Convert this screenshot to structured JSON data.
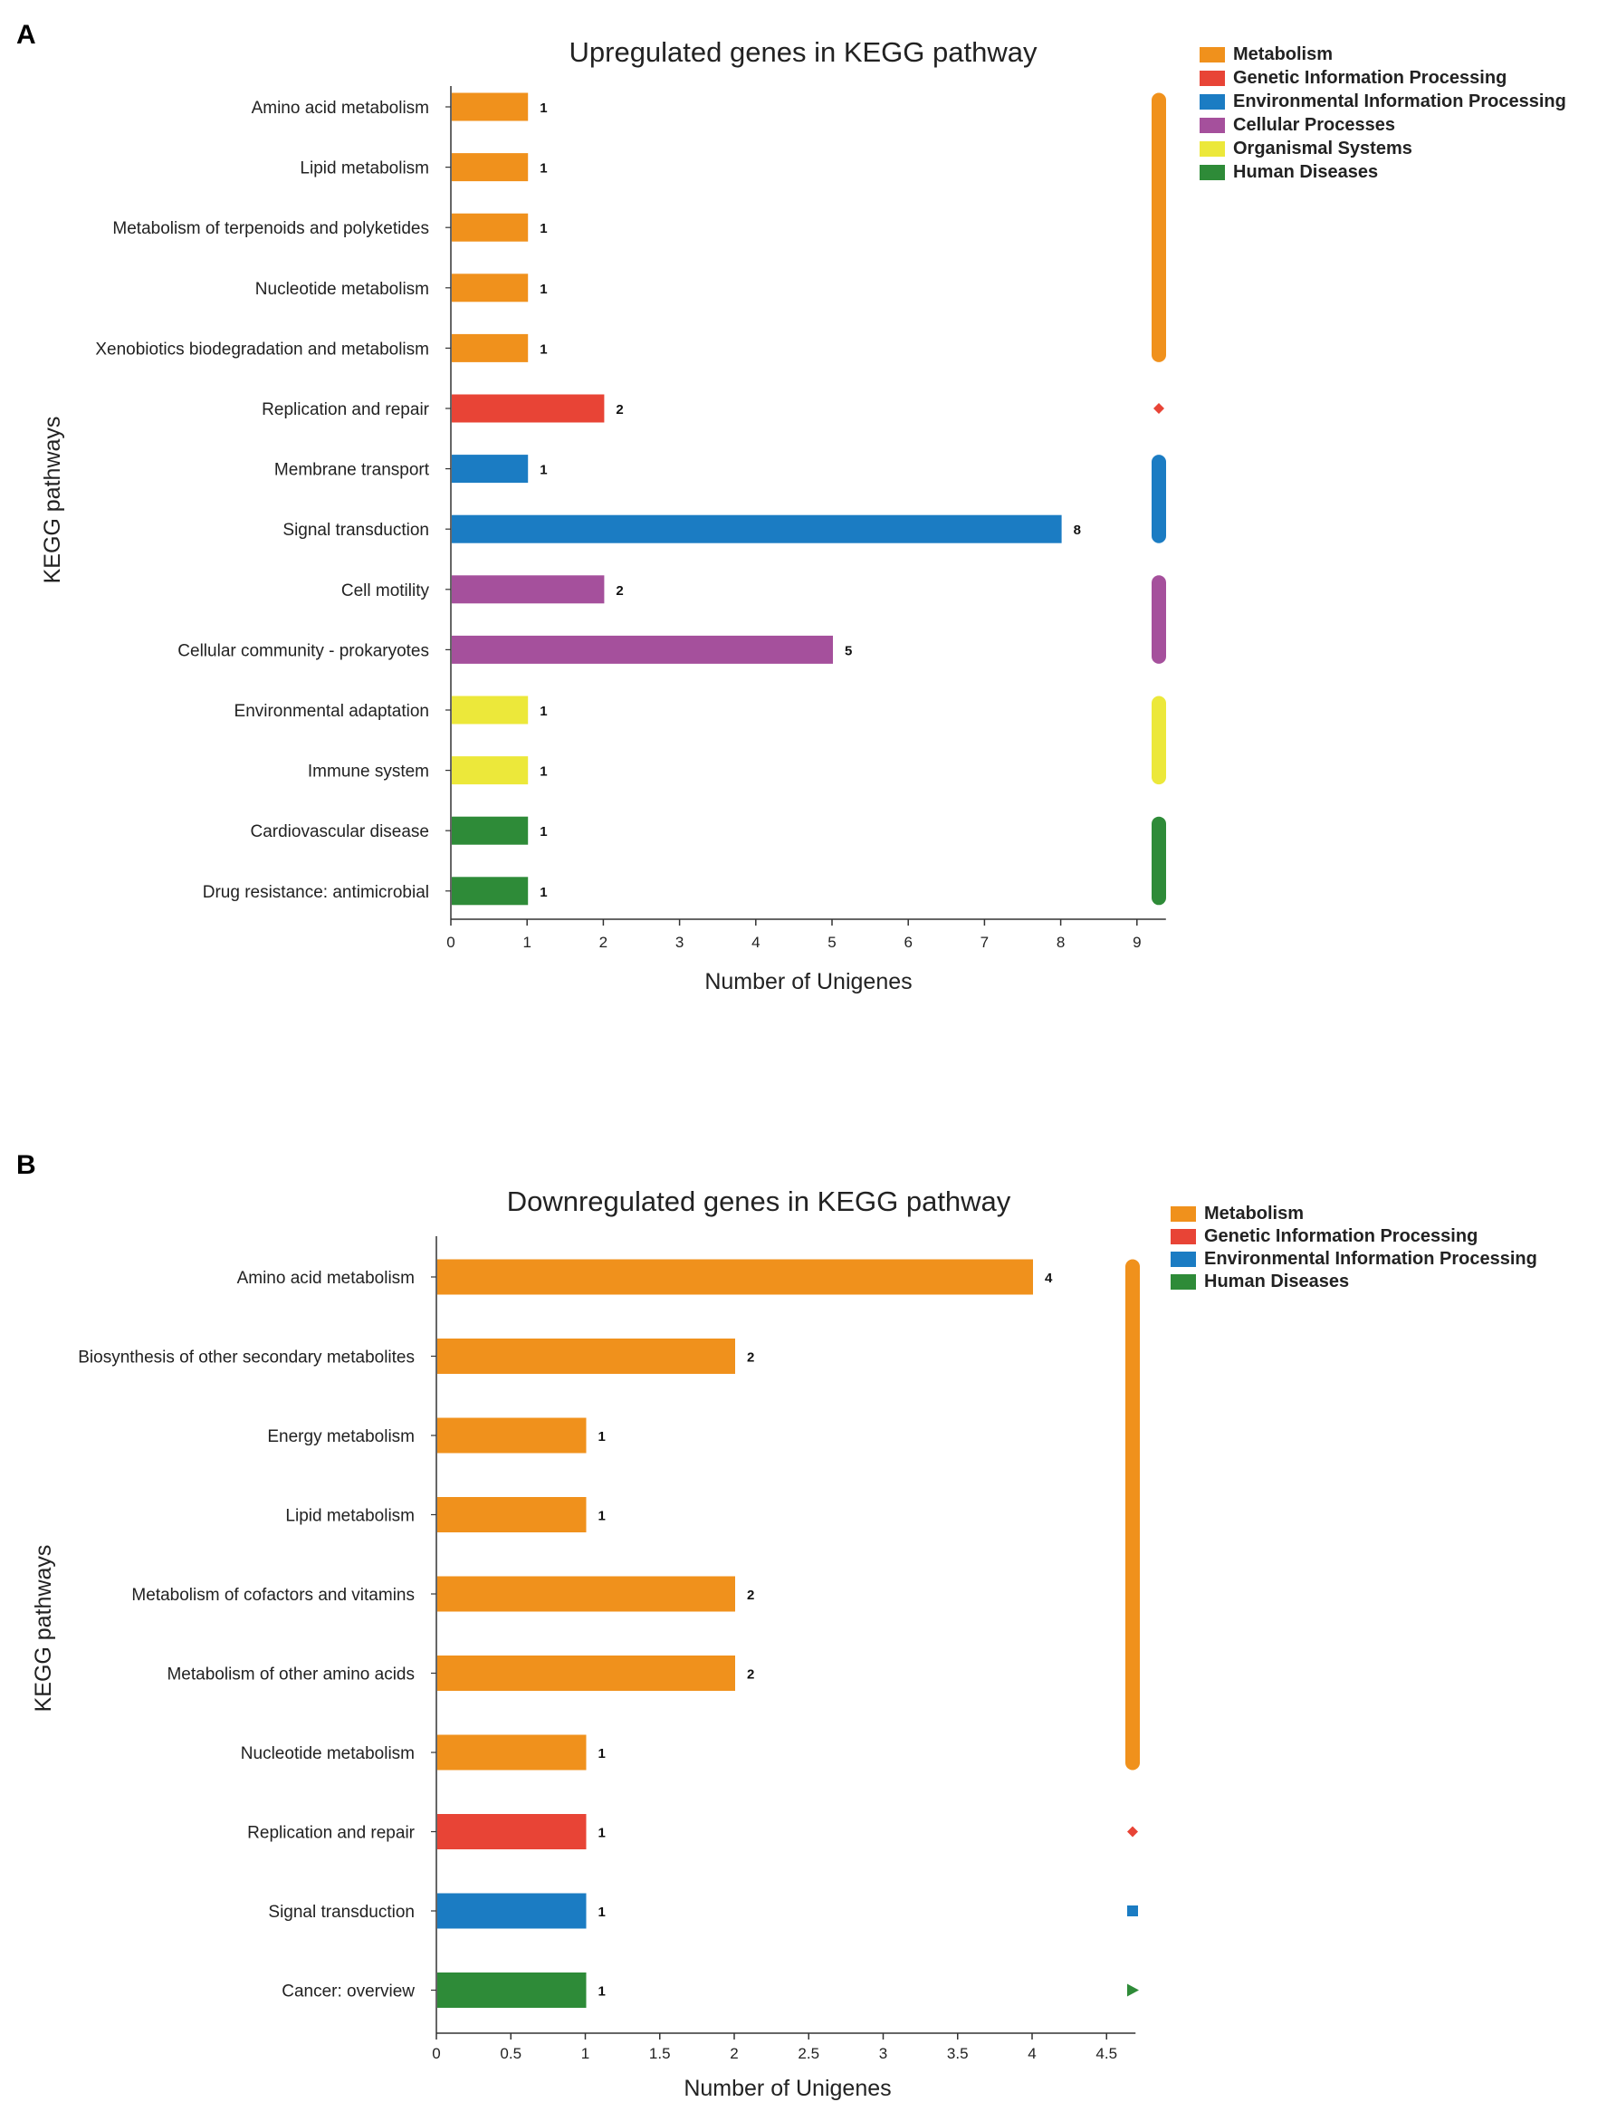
{
  "colors": {
    "Metabolism": "#F0911C",
    "Genetic Information Processing": "#E84436",
    "Environmental Information Processing": "#1B7CC3",
    "Cellular Processes": "#A5509C",
    "Organismal Systems": "#ECE83A",
    "Human Diseases": "#2E8B38"
  },
  "chart_data": [
    {
      "panel": "A",
      "type": "bar",
      "orientation": "horizontal",
      "title": "Upregulated genes in KEGG pathway",
      "xlabel": "Number of Unigenes",
      "ylabel": "KEGG pathways",
      "xlim": [
        0,
        9
      ],
      "xticks": [
        "0",
        "1",
        "2",
        "3",
        "4",
        "5",
        "6",
        "7",
        "8",
        "9"
      ],
      "legend_position": "top-right",
      "legend": [
        "Metabolism",
        "Genetic Information Processing",
        "Environmental Information Processing",
        "Cellular Processes",
        "Organismal Systems",
        "Human Diseases"
      ],
      "categories": [
        "Amino acid metabolism",
        "Lipid metabolism",
        "Metabolism of terpenoids and polyketides",
        "Nucleotide metabolism",
        "Xenobiotics biodegradation and metabolism",
        "Replication and repair",
        "Membrane transport",
        "Signal transduction",
        "Cell motility",
        "Cellular community - prokaryotes",
        "Environmental adaptation",
        "Immune system",
        "Cardiovascular disease",
        "Drug resistance: antimicrobial"
      ],
      "values": [
        1,
        1,
        1,
        1,
        1,
        2,
        1,
        8,
        2,
        5,
        1,
        1,
        1,
        1
      ],
      "groups": [
        "Metabolism",
        "Metabolism",
        "Metabolism",
        "Metabolism",
        "Metabolism",
        "Genetic Information Processing",
        "Environmental Information Processing",
        "Environmental Information Processing",
        "Cellular Processes",
        "Cellular Processes",
        "Organismal Systems",
        "Organismal Systems",
        "Human Diseases",
        "Human Diseases"
      ]
    },
    {
      "panel": "B",
      "type": "bar",
      "orientation": "horizontal",
      "title": "Downregulated genes in KEGG pathway",
      "xlabel": "Number of Unigenes",
      "ylabel": "KEGG pathways",
      "xlim": [
        0,
        4.5
      ],
      "xticks": [
        "0",
        "0.5",
        "1",
        "1.5",
        "2",
        "2.5",
        "3",
        "3.5",
        "4",
        "4.5"
      ],
      "legend_position": "top-right",
      "legend": [
        "Metabolism",
        "Genetic Information Processing",
        "Environmental Information Processing",
        "Human Diseases"
      ],
      "categories": [
        "Amino acid metabolism",
        "Biosynthesis of other secondary metabolites",
        "Energy metabolism",
        "Lipid metabolism",
        "Metabolism of cofactors and vitamins",
        "Metabolism of other amino acids",
        "Nucleotide metabolism",
        "Replication and repair",
        "Signal transduction",
        "Cancer: overview"
      ],
      "values": [
        4,
        2,
        1,
        1,
        2,
        2,
        1,
        1,
        1,
        1
      ],
      "groups": [
        "Metabolism",
        "Metabolism",
        "Metabolism",
        "Metabolism",
        "Metabolism",
        "Metabolism",
        "Metabolism",
        "Genetic Information Processing",
        "Environmental Information Processing",
        "Human Diseases"
      ]
    }
  ]
}
